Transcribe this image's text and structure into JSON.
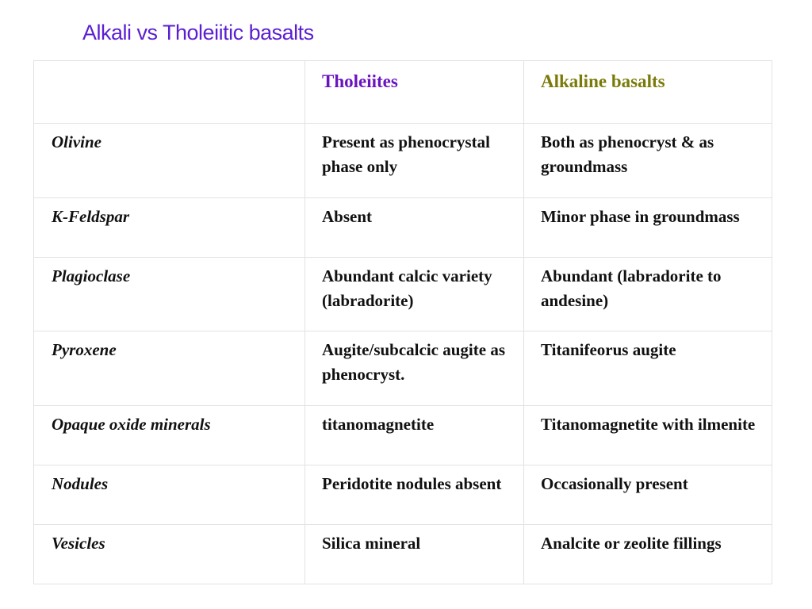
{
  "title": "Alkali vs Tholeiitic basalts",
  "header": {
    "blank": "",
    "col1": "Tholeiites",
    "col2": "Alkaline basalts"
  },
  "colors": {
    "title": "#5b1fd1",
    "tholeiites_header": "#6a14c0",
    "alkaline_header": "#7a7a0a"
  },
  "rows": [
    {
      "property": "Olivine",
      "tholeiites": "Present as phenocrystal phase only",
      "alkaline": "Both as phenocryst & as groundmass"
    },
    {
      "property": "K-Feldspar",
      "tholeiites": "Absent",
      "alkaline": "Minor phase in groundmass"
    },
    {
      "property": "Plagioclase",
      "tholeiites": "Abundant calcic variety (labradorite)",
      "alkaline": "Abundant (labradorite to andesine)"
    },
    {
      "property": "Pyroxene",
      "tholeiites": "Augite/subcalcic augite as phenocryst.",
      "alkaline": "Titanifeorus augite"
    },
    {
      "property": "Opaque oxide minerals",
      "tholeiites": "titanomagnetite",
      "alkaline": "Titanomagnetite with ilmenite"
    },
    {
      "property": "Nodules",
      "tholeiites": "Peridotite nodules absent",
      "alkaline": "Occasionally present"
    },
    {
      "property": "Vesicles",
      "tholeiites": "Silica mineral",
      "alkaline": "Analcite or zeolite fillings"
    }
  ]
}
